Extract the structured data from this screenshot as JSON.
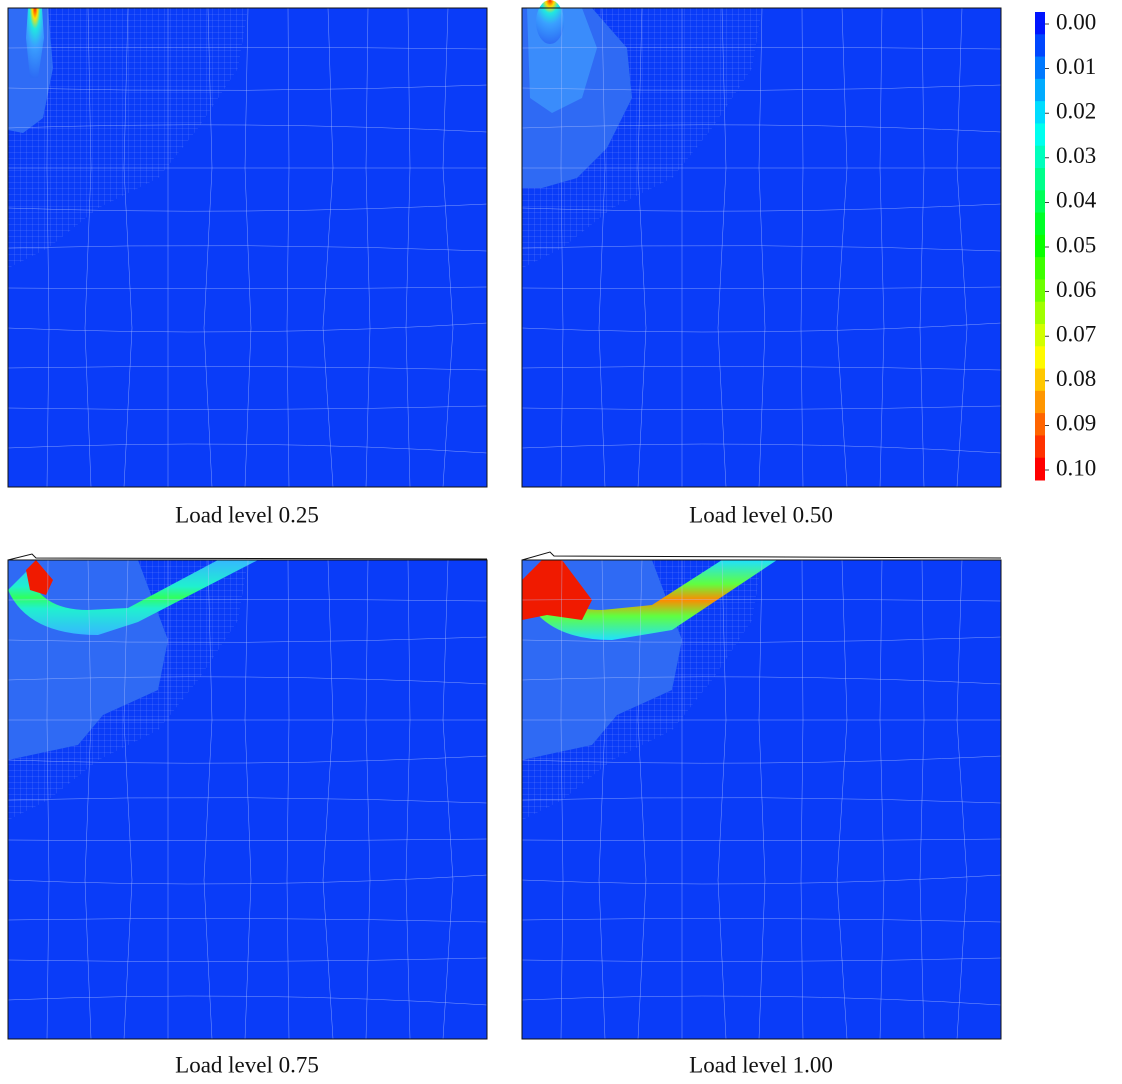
{
  "panels": [
    {
      "caption": "Load level 0.25"
    },
    {
      "caption": "Load level 0.50"
    },
    {
      "caption": "Load level 0.75"
    },
    {
      "caption": "Load level 1.00"
    }
  ],
  "colorbar": {
    "ticks": [
      {
        "value": 0,
        "label": "0.00"
      },
      {
        "value": 0.01,
        "label": "0.01"
      },
      {
        "value": 0.02,
        "label": "0.02"
      },
      {
        "value": 0.03,
        "label": "0.03"
      },
      {
        "value": 0.04,
        "label": "0.04"
      },
      {
        "value": 0.05,
        "label": "0.05"
      },
      {
        "value": 0.06,
        "label": "0.06"
      },
      {
        "value": 0.07,
        "label": "0.07"
      },
      {
        "value": 0.08,
        "label": "0.08"
      },
      {
        "value": 0.09,
        "label": "0.09"
      },
      {
        "value": 0.1,
        "label": "0.10"
      }
    ]
  }
}
